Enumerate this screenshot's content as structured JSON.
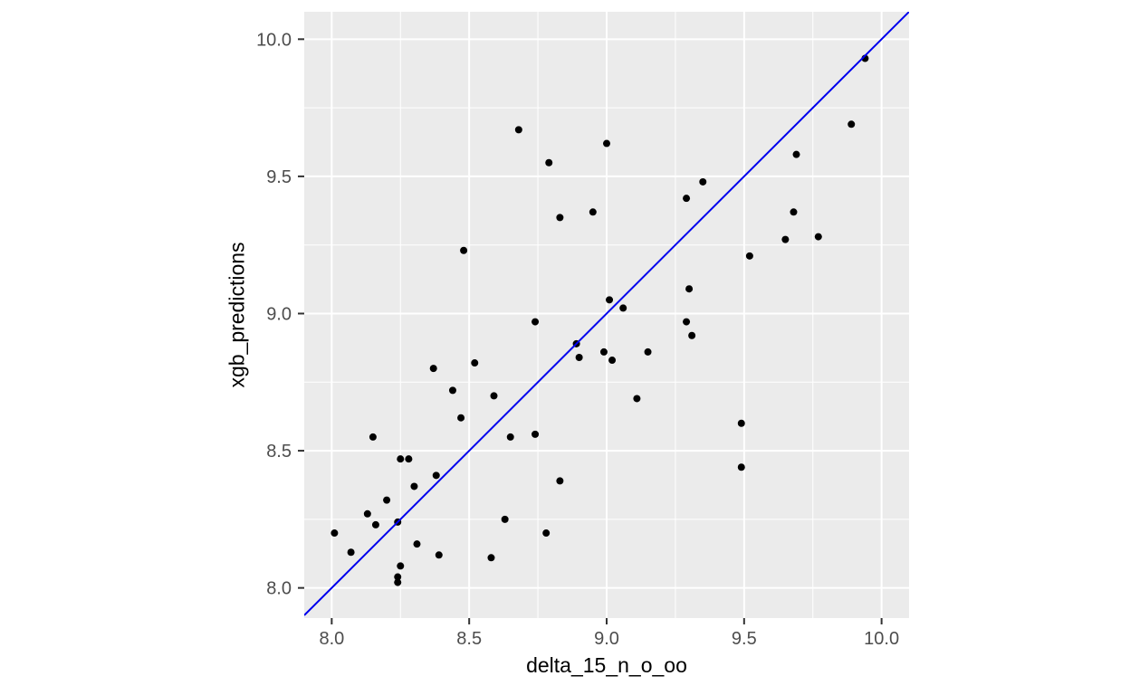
{
  "chart_data": {
    "type": "scatter",
    "title": "",
    "xlabel": "delta_15_n_o_oo",
    "ylabel": "xgb_predictions",
    "x_ticks": [
      8.0,
      8.5,
      9.0,
      9.5,
      10.0
    ],
    "y_ticks": [
      8.0,
      8.5,
      9.0,
      9.5,
      10.0
    ],
    "x_minor_ticks": [
      8.25,
      8.75,
      9.25,
      9.75
    ],
    "y_minor_ticks": [
      8.25,
      8.75,
      9.25,
      9.75
    ],
    "xlim": [
      7.9,
      10.1
    ],
    "ylim": [
      7.89,
      10.1
    ],
    "grid": "white major and minor gridlines on gray panel",
    "legend_position": "none",
    "reference_line": {
      "slope": 1,
      "intercept": 0
    },
    "points": [
      [
        8.68,
        9.67
      ],
      [
        9.0,
        9.62
      ],
      [
        8.79,
        9.55
      ],
      [
        8.83,
        9.35
      ],
      [
        8.95,
        9.37
      ],
      [
        8.48,
        9.23
      ],
      [
        9.01,
        9.05
      ],
      [
        9.06,
        9.02
      ],
      [
        8.74,
        8.97
      ],
      [
        9.89,
        9.69
      ],
      [
        9.69,
        9.58
      ],
      [
        9.35,
        9.48
      ],
      [
        9.29,
        9.42
      ],
      [
        9.68,
        9.37
      ],
      [
        9.77,
        9.28
      ],
      [
        9.65,
        9.27
      ],
      [
        9.52,
        9.21
      ],
      [
        9.3,
        9.09
      ],
      [
        9.94,
        9.93
      ],
      [
        8.37,
        8.8
      ],
      [
        8.52,
        8.82
      ],
      [
        8.44,
        8.72
      ],
      [
        8.59,
        8.7
      ],
      [
        8.47,
        8.62
      ],
      [
        8.65,
        8.55
      ],
      [
        8.15,
        8.55
      ],
      [
        8.25,
        8.47
      ],
      [
        8.28,
        8.47
      ],
      [
        8.38,
        8.41
      ],
      [
        8.3,
        8.37
      ],
      [
        8.13,
        8.27
      ],
      [
        8.16,
        8.23
      ],
      [
        8.2,
        8.32
      ],
      [
        8.24,
        8.24
      ],
      [
        8.01,
        8.2
      ],
      [
        8.07,
        8.13
      ],
      [
        8.31,
        8.16
      ],
      [
        8.39,
        8.12
      ],
      [
        8.25,
        8.08
      ],
      [
        8.24,
        8.04
      ],
      [
        8.24,
        8.02
      ],
      [
        8.58,
        8.11
      ],
      [
        8.63,
        8.25
      ],
      [
        9.11,
        8.69
      ],
      [
        8.74,
        8.56
      ],
      [
        8.83,
        8.39
      ],
      [
        8.78,
        8.2
      ],
      [
        9.29,
        8.97
      ],
      [
        9.31,
        8.92
      ],
      [
        9.49,
        8.6
      ],
      [
        9.49,
        8.44
      ],
      [
        8.89,
        8.89
      ],
      [
        8.9,
        8.84
      ],
      [
        8.99,
        8.86
      ],
      [
        9.02,
        8.83
      ],
      [
        9.15,
        8.86
      ]
    ]
  },
  "style": {
    "panel_background": "#EBEBEB",
    "grid_color": "#FFFFFF",
    "point_color": "#000000",
    "line_color": "#0000EE",
    "tick_label_color": "#4D4D4D",
    "tick_mark_color": "#333333",
    "axis_title_color": "#000000"
  }
}
